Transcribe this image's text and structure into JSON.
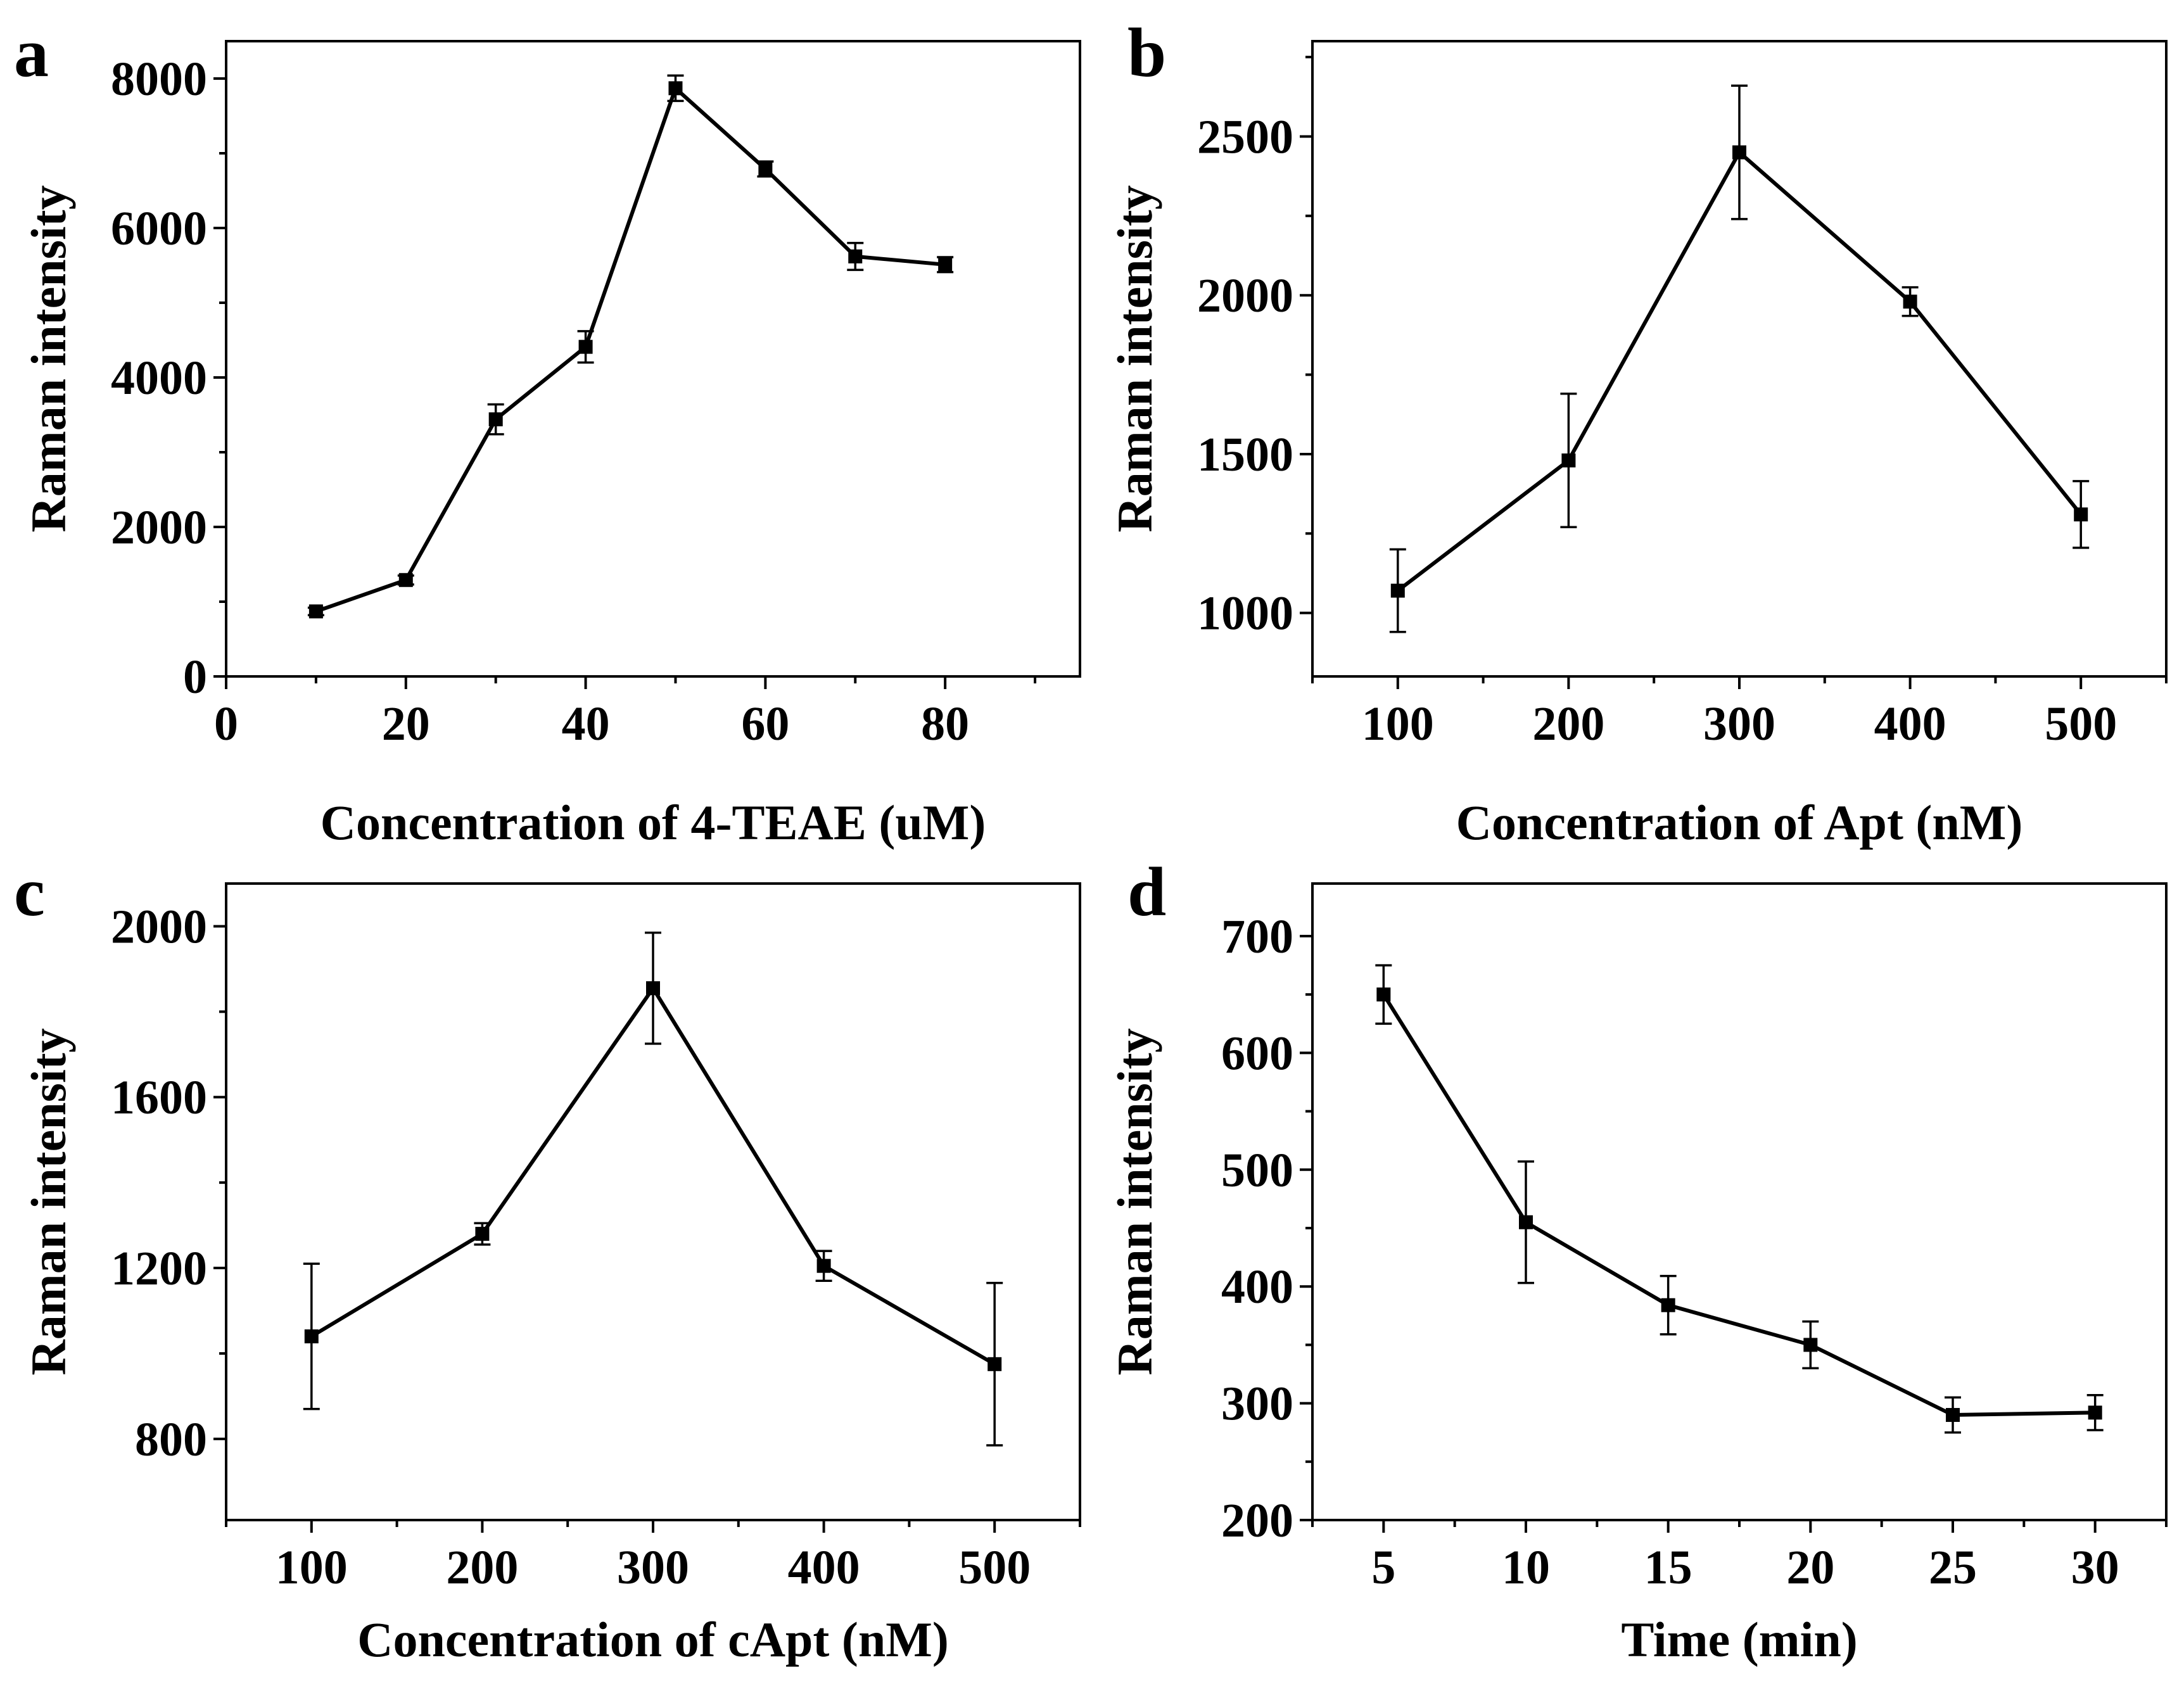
{
  "chart_data": [
    {
      "id": "a",
      "panel_label": "a",
      "type": "line",
      "xlabel": "Concentration of 4-TEAE (uM)",
      "ylabel": "Raman intensity",
      "xlim": [
        0,
        95
      ],
      "ylim": [
        0,
        8500
      ],
      "xticks": [
        0,
        20,
        40,
        60,
        80
      ],
      "yticks": [
        0,
        2000,
        4000,
        6000,
        8000
      ],
      "x": [
        10,
        20,
        30,
        40,
        50,
        60,
        70,
        80
      ],
      "y": [
        870,
        1290,
        3440,
        4410,
        7870,
        6790,
        5620,
        5510
      ],
      "err": [
        50,
        60,
        200,
        210,
        170,
        100,
        180,
        100
      ]
    },
    {
      "id": "b",
      "panel_label": "b",
      "type": "line",
      "xlabel": "Concentration of Apt (nM)",
      "ylabel": "Raman intensity",
      "xlim": [
        50,
        550
      ],
      "ylim": [
        800,
        2800
      ],
      "xticks": [
        100,
        200,
        300,
        400,
        500
      ],
      "yticks": [
        1000,
        1500,
        2000,
        2500
      ],
      "x": [
        100,
        200,
        300,
        400,
        500
      ],
      "y": [
        1070,
        1480,
        2450,
        1980,
        1310
      ],
      "err": [
        130,
        210,
        210,
        45,
        105
      ]
    },
    {
      "id": "c",
      "panel_label": "c",
      "type": "line",
      "xlabel": "Concentration of cApt (nM)",
      "ylabel": "Raman intensity",
      "xlim": [
        50,
        550
      ],
      "ylim": [
        610,
        2100
      ],
      "xticks": [
        100,
        200,
        300,
        400,
        500
      ],
      "yticks": [
        800,
        1200,
        1600,
        2000
      ],
      "x": [
        100,
        200,
        300,
        400,
        500
      ],
      "y": [
        1040,
        1280,
        1855,
        1205,
        975
      ],
      "err": [
        170,
        25,
        130,
        35,
        190
      ]
    },
    {
      "id": "d",
      "panel_label": "d",
      "type": "line",
      "xlabel": "Time (min)",
      "ylabel": "Raman intensity",
      "xlim": [
        2.5,
        32.5
      ],
      "ylim": [
        200,
        745
      ],
      "xticks": [
        5,
        10,
        15,
        20,
        25,
        30
      ],
      "yticks": [
        200,
        300,
        400,
        500,
        600,
        700
      ],
      "x": [
        5,
        10,
        15,
        20,
        25,
        30
      ],
      "y": [
        650,
        455,
        384,
        350,
        290,
        292
      ],
      "err": [
        25,
        52,
        25,
        20,
        15,
        15
      ]
    }
  ]
}
